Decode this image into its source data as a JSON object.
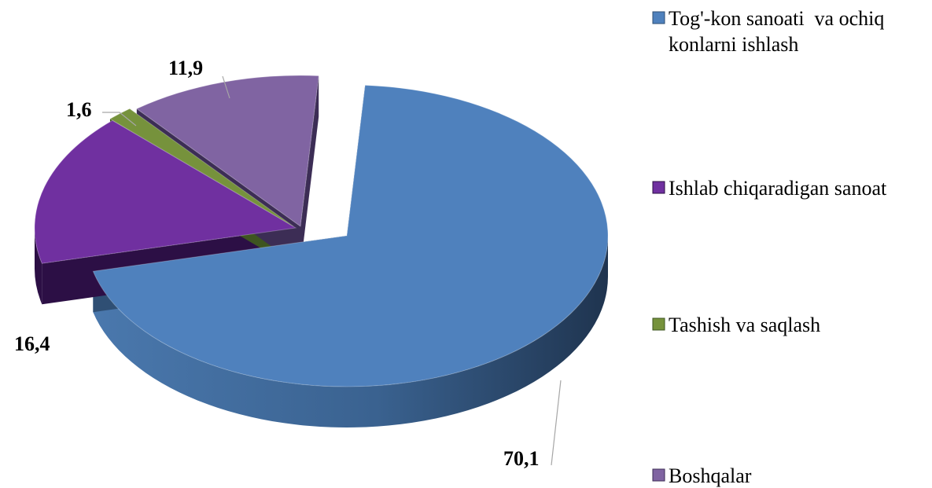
{
  "chart_data": {
    "type": "pie",
    "style": "3d-exploded",
    "title": "",
    "labels": [
      "Tog'-kon sanoati  va ochiq konlarni ishlash",
      "Ishlab chiqaradigan sanoat",
      "Tashish va saqlash",
      "Boshqalar"
    ],
    "values": [
      70.1,
      16.4,
      1.6,
      11.9
    ],
    "value_labels": [
      "70,1",
      "16,4",
      "1,6",
      "11,9"
    ],
    "legend_lines": [
      [
        "Tog'-kon sanoati  va ochiq",
        "konlarni ishlash"
      ],
      [
        "Ishlab chiqaradigan sanoat"
      ],
      [
        "Tashish va saqlash"
      ],
      [
        "Boshqalar"
      ]
    ],
    "colors": [
      "#4f81bd",
      "#7030a0",
      "#76923c",
      "#8064a2"
    ],
    "side_colors": [
      "#2f4f74",
      "#2c0f45",
      "#3e5520",
      "#3c2d55"
    ],
    "legend_position": "right"
  }
}
